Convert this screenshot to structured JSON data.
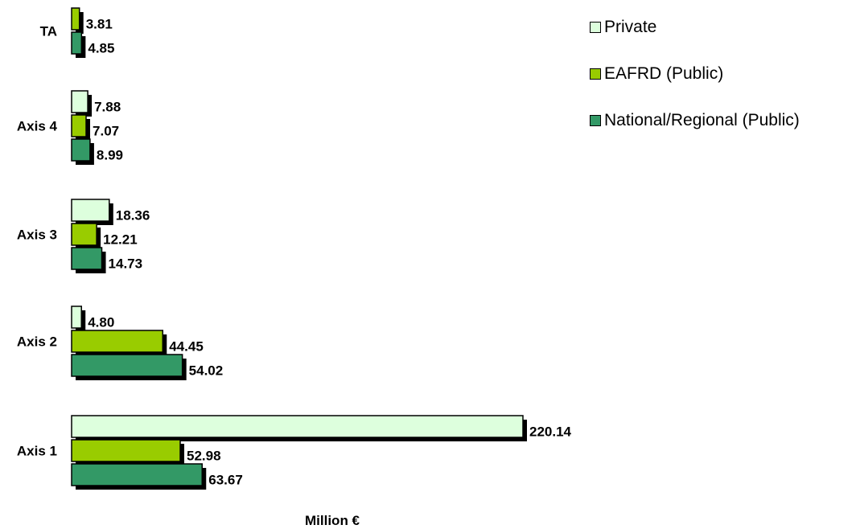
{
  "chart_data": {
    "type": "bar",
    "orientation": "horizontal",
    "categories": [
      "Axis 1",
      "Axis 2",
      "Axis 3",
      "Axis 4",
      "TA"
    ],
    "series": [
      {
        "name": "Private",
        "color": "#ddffdd",
        "values": [
          220.14,
          4.8,
          18.36,
          7.88,
          null
        ]
      },
      {
        "name": "EAFRD (Public)",
        "color": "#99cc00",
        "values": [
          52.98,
          44.45,
          12.21,
          7.07,
          3.81
        ]
      },
      {
        "name": "National/Regional (Public)",
        "color": "#339966",
        "values": [
          63.67,
          54.02,
          14.73,
          8.99,
          4.85
        ]
      }
    ],
    "value_labels": {
      "Private": [
        "220.14",
        "4.80",
        "18.36",
        "7.88",
        ""
      ],
      "EAFRD (Public)": [
        "52.98",
        "44.45",
        "12.21",
        "7.07",
        "3.81"
      ],
      "National/Regional (Public)": [
        "63.67",
        "54.02",
        "14.73",
        "8.99",
        "4.85"
      ]
    },
    "xlabel": "Million €",
    "ylabel": "",
    "xlim": [
      0,
      230
    ],
    "grid": false,
    "legend_position": "top-right"
  }
}
